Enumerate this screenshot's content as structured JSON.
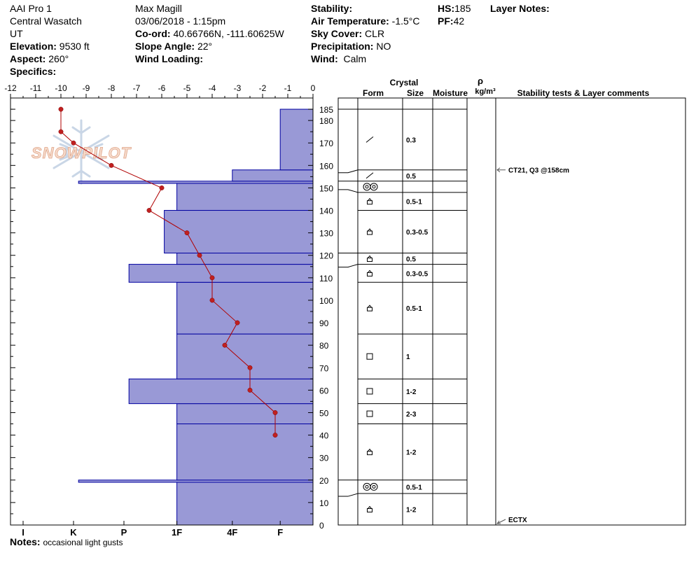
{
  "header": {
    "col1": {
      "line1": "AAI Pro 1",
      "line2": "Central Wasatch",
      "line3": "UT",
      "elevation_label": "Elevation:",
      "elevation_value": "9530 ft",
      "aspect_label": "Aspect:",
      "aspect_value": "260°",
      "specifics_label": "Specifics:"
    },
    "col2": {
      "observer": "Max Magill",
      "datetime": "03/06/2018 - 1:15pm",
      "coord_label": "Co-ord:",
      "coord_value": "40.66766N, -111.60625W",
      "slope_label": "Slope Angle:",
      "slope_value": "22°",
      "wind_loading_label": "Wind Loading:"
    },
    "col3": {
      "stability_label": "Stability:",
      "air_temp_label": "Air Temperature:",
      "air_temp_value": "-1.5°C",
      "sky_label": "Sky Cover:",
      "sky_value": "CLR",
      "precip_label": "Precipitation:",
      "precip_value": "NO",
      "wind_label": "Wind:",
      "wind_value": "Calm"
    },
    "col4": {
      "hs_label": "HS:",
      "hs_value": "185",
      "pf_label": "PF:",
      "pf_value": "42"
    },
    "col5": {
      "layer_notes_label": "Layer Notes:"
    }
  },
  "notes": {
    "label": "Notes:",
    "text": "occasional light gusts"
  },
  "watermark": {
    "text": "SNOWPILOT"
  },
  "colors": {
    "bar_fill": "#9999d6",
    "bar_stroke": "#0000a0",
    "temp_line": "#b00000",
    "temp_marker": "#c02020"
  },
  "table": {
    "crystal_header": "Crystal",
    "form_header": "Form",
    "size_header": "Size",
    "moisture_header": "Moisture",
    "rho_header": "ρ",
    "density_header": "kg/m³",
    "comments_header": "Stability tests & Layer comments"
  },
  "chart_data": {
    "type": "bar",
    "temp_axis": {
      "ticks": [
        -12,
        -11,
        -10,
        -9,
        -8,
        -7,
        -6,
        -5,
        -4,
        -3,
        -2,
        -1,
        0
      ],
      "range": [
        -12,
        0
      ]
    },
    "depth_axis": {
      "ticks": [
        185,
        180,
        170,
        160,
        150,
        140,
        130,
        120,
        110,
        100,
        90,
        80,
        70,
        60,
        50,
        40,
        30,
        20,
        10,
        0
      ],
      "range": [
        0,
        190
      ]
    },
    "hardness_axis": {
      "labels": [
        "I",
        "K",
        "P",
        "1F",
        "4F",
        "F"
      ],
      "label_values": [
        11.5,
        9.5,
        7.5,
        5.4,
        3.2,
        1.3
      ]
    },
    "hardness_bars": [
      {
        "bottom": 152,
        "top": 153,
        "value": 9.3
      },
      {
        "bottom": 0,
        "top": 19,
        "value": 5.4
      },
      {
        "bottom": 19,
        "top": 20,
        "value": 9.3
      },
      {
        "bottom": 20,
        "top": 45,
        "value": 5.4
      },
      {
        "bottom": 45,
        "top": 54,
        "value": 5.4
      },
      {
        "bottom": 54,
        "top": 65,
        "value": 7.3
      },
      {
        "bottom": 65,
        "top": 85,
        "value": 5.4
      },
      {
        "bottom": 85,
        "top": 108,
        "value": 5.4
      },
      {
        "bottom": 108,
        "top": 116,
        "value": 7.3
      },
      {
        "bottom": 116,
        "top": 121,
        "value": 5.4
      },
      {
        "bottom": 121,
        "top": 140,
        "value": 5.9
      },
      {
        "bottom": 140,
        "top": 152,
        "value": 5.4
      },
      {
        "bottom": 153,
        "top": 158,
        "value": 3.2
      },
      {
        "bottom": 158,
        "top": 185,
        "value": 1.3
      }
    ],
    "temperature_profile": {
      "depth": [
        185,
        175,
        170,
        160,
        150,
        140,
        130,
        120,
        110,
        100,
        90,
        80,
        70,
        60,
        50,
        40
      ],
      "temp": [
        -10.0,
        -10.0,
        -9.5,
        -8.0,
        -6.0,
        -6.5,
        -5.0,
        -4.5,
        -4.0,
        -4.0,
        -3.0,
        -3.5,
        -2.5,
        -2.5,
        -1.5,
        -1.5
      ]
    },
    "layers": [
      {
        "top": 185,
        "bottom": 158,
        "form_icon": "slash",
        "size": "0.3"
      },
      {
        "top": 158,
        "bottom": 153,
        "form_icon": "slash",
        "size": "0.5"
      },
      {
        "top": 153,
        "bottom": 148,
        "form_icon": "double-circle",
        "size": ""
      },
      {
        "top": 148,
        "bottom": 140,
        "form_icon": "caret-box",
        "size": "0.5-1"
      },
      {
        "top": 140,
        "bottom": 121,
        "form_icon": "caret-box",
        "size": "0.3-0.5"
      },
      {
        "top": 121,
        "bottom": 116,
        "form_icon": "caret-box",
        "size": "0.5"
      },
      {
        "top": 116,
        "bottom": 108,
        "form_icon": "caret-box",
        "size": "0.3-0.5"
      },
      {
        "top": 108,
        "bottom": 85,
        "form_icon": "caret-box",
        "size": "0.5-1"
      },
      {
        "top": 85,
        "bottom": 65,
        "form_icon": "square",
        "size": "1"
      },
      {
        "top": 65,
        "bottom": 54,
        "form_icon": "square",
        "size": "1-2"
      },
      {
        "top": 54,
        "bottom": 45,
        "form_icon": "square",
        "size": "2-3"
      },
      {
        "top": 45,
        "bottom": 20,
        "form_icon": "caret-box",
        "size": "1-2"
      },
      {
        "top": 20,
        "bottom": 14,
        "form_icon": "double-circle",
        "size": "0.5-1"
      },
      {
        "top": 14,
        "bottom": 0,
        "form_icon": "caret-box",
        "size": "1-2"
      }
    ],
    "stability_tests": [
      {
        "depth": 158,
        "text": "CT21, Q3 @158cm"
      },
      {
        "depth": 0,
        "text": "ECTX"
      }
    ]
  }
}
